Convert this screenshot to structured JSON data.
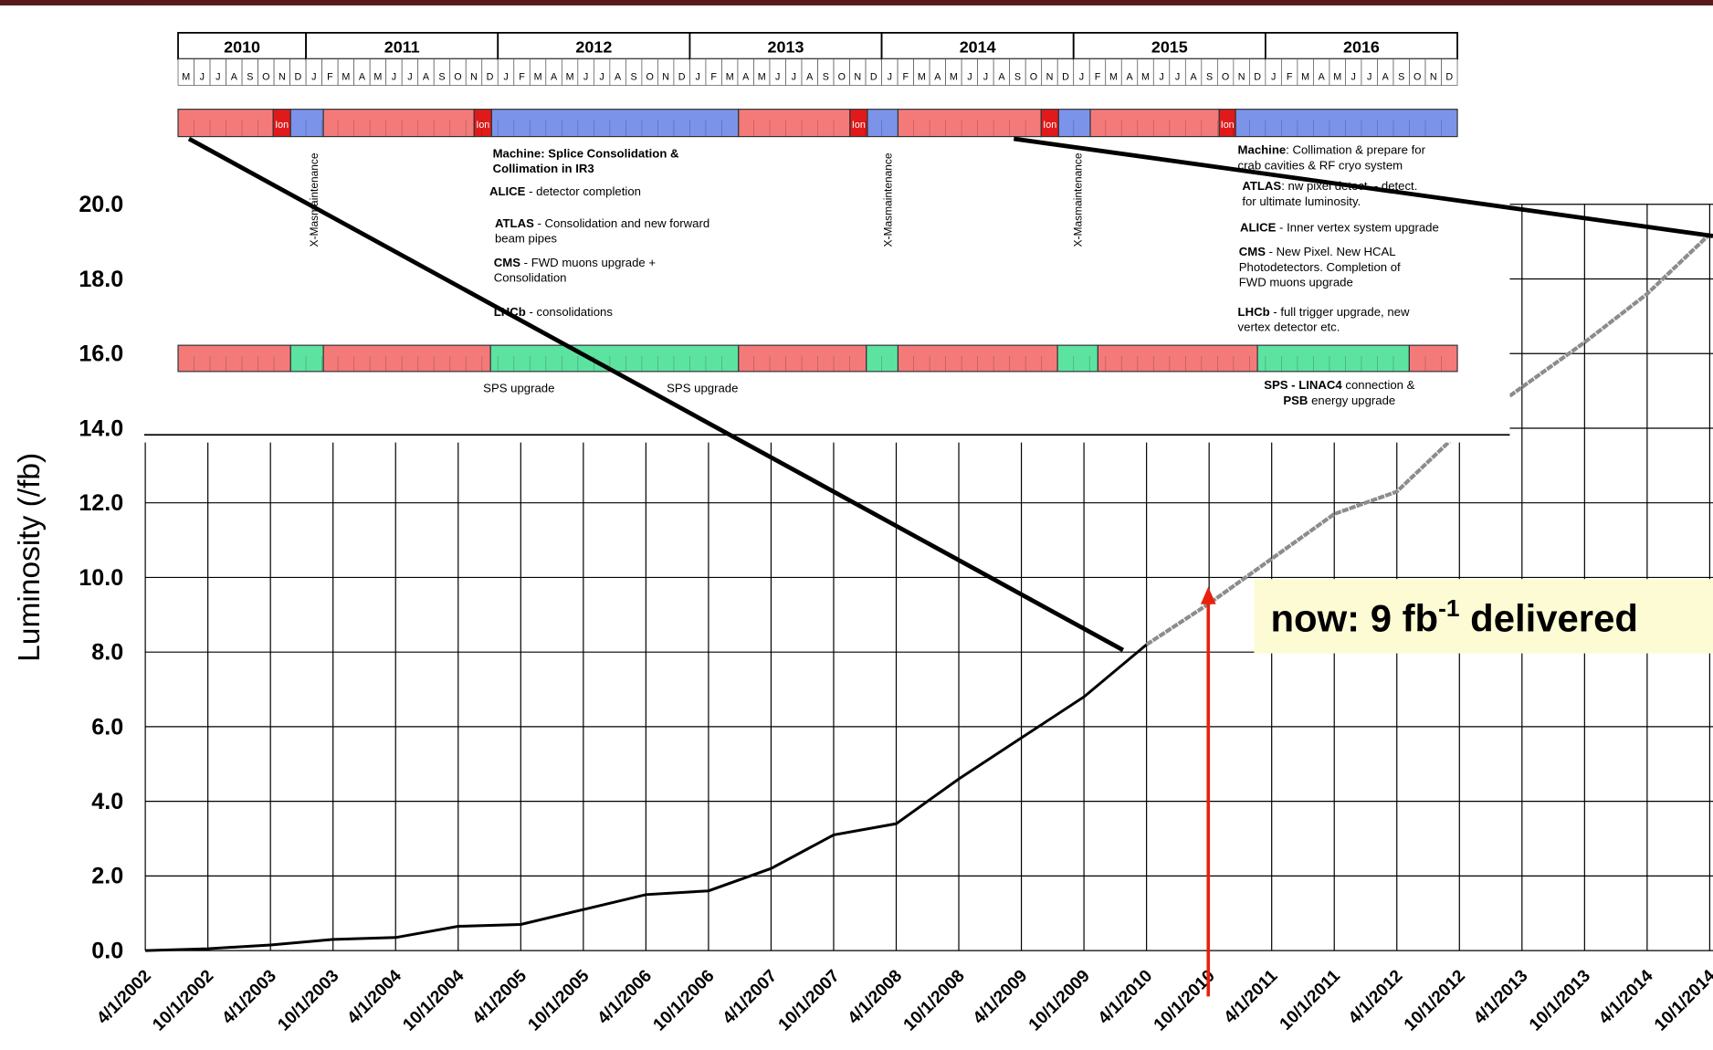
{
  "chart_data": {
    "type": "line",
    "y_axis_label": "Luminosity (/fb)",
    "categories": [
      "4/1/2002",
      "10/1/2002",
      "4/1/2003",
      "10/1/2003",
      "4/1/2004",
      "10/1/2004",
      "4/1/2005",
      "10/1/2005",
      "4/1/2006",
      "10/1/2006",
      "4/1/2007",
      "10/1/2007",
      "4/1/2008",
      "10/1/2008",
      "4/1/2009",
      "10/1/2009",
      "4/1/2010",
      "10/1/2010",
      "4/1/2011",
      "10/1/2011",
      "4/1/2012",
      "10/1/2012",
      "4/1/2013",
      "10/1/2013",
      "4/1/2014",
      "10/1/2014"
    ],
    "series": [
      {
        "color": "#000000",
        "values": [
          0.0,
          0.05,
          0.15,
          0.3,
          0.35,
          0.65,
          0.7,
          1.1,
          1.5,
          1.6,
          2.2,
          3.1,
          3.4,
          4.6,
          5.7,
          6.8,
          8.2,
          null,
          null,
          null,
          null,
          null,
          null,
          null,
          null,
          null
        ]
      },
      {
        "color": "#8c8c8c",
        "values": [
          null,
          null,
          null,
          null,
          null,
          null,
          null,
          null,
          null,
          null,
          null,
          null,
          null,
          null,
          null,
          null,
          8.2,
          9.3,
          10.5,
          11.7,
          12.3,
          13.9,
          15.1,
          16.3,
          17.6,
          19.2
        ]
      }
    ],
    "ylim": [
      0,
      20
    ],
    "yticks": [
      {
        "value": 0,
        "label": "0.0"
      },
      {
        "value": 2,
        "label": "2.0"
      },
      {
        "value": 4,
        "label": "4.0"
      },
      {
        "value": 6,
        "label": "6.0"
      },
      {
        "value": 8,
        "label": "8.0"
      },
      {
        "value": 10,
        "label": "10.0"
      },
      {
        "value": 12,
        "label": "12.0"
      },
      {
        "value": 14,
        "label": "14.0"
      },
      {
        "value": 16,
        "label": "16.0"
      },
      {
        "value": 18,
        "label": "18.0"
      },
      {
        "value": 20,
        "label": "20.0"
      }
    ],
    "grid": true,
    "annotation": {
      "text": "now: 9 fb",
      "superscript": "-1",
      "suffix": " delivered"
    }
  },
  "schedule": {
    "years": [
      "2010",
      "2011",
      "2012",
      "2013",
      "2014",
      "2015",
      "2016"
    ],
    "months": [
      [
        "M",
        "J",
        "J",
        "A",
        "S",
        "O",
        "N",
        "D"
      ],
      [
        "J",
        "F",
        "M",
        "A",
        "M",
        "J",
        "J",
        "A",
        "S",
        "O",
        "N",
        "D"
      ],
      [
        "J",
        "F",
        "M",
        "A",
        "M",
        "J",
        "J",
        "A",
        "S",
        "O",
        "N",
        "D"
      ],
      [
        "J",
        "F",
        "M",
        "A",
        "M",
        "J",
        "J",
        "A",
        "S",
        "O",
        "N",
        "D"
      ],
      [
        "J",
        "F",
        "M",
        "A",
        "M",
        "J",
        "J",
        "A",
        "S",
        "O",
        "N",
        "D"
      ],
      [
        "J",
        "F",
        "M",
        "A",
        "M",
        "J",
        "J",
        "A",
        "S",
        "O",
        "N",
        "D"
      ],
      [
        "J",
        "F",
        "M",
        "A",
        "M",
        "J",
        "J",
        "A",
        "S",
        "O",
        "N",
        "D"
      ]
    ],
    "ion_labels": [
      "Ion",
      "Ion",
      "Ion",
      "Ion",
      "Ion"
    ],
    "xmas_labels": [
      "X-Masmaintenance",
      "X-Masmaintenance",
      "X-Masmaintenance"
    ],
    "notes_left": [
      {
        "bold": "Machine: Splice Consolidation &",
        "rest": ""
      },
      {
        "bold": "Collimation in IR3",
        "rest": ""
      },
      {
        "bold": "ALICE",
        "rest": " - detector completion"
      },
      {
        "bold": "ATLAS",
        "rest": " - Consolidation and new forward"
      },
      {
        "bold": "",
        "rest": "beam pipes"
      },
      {
        "bold": "CMS",
        "rest": " - FWD muons upgrade +"
      },
      {
        "bold": "",
        "rest": "Consolidation"
      },
      {
        "bold": "LHCb",
        "rest": " - consolidations"
      }
    ],
    "notes_right": [
      {
        "bold": "Machine",
        "rest": ": Collimation & prepare for"
      },
      {
        "bold": "",
        "rest": "crab cavities & RF cryo system"
      },
      {
        "bold": "ATLAS",
        "rest": ": nw pixel detect.  - detect."
      },
      {
        "bold": "",
        "rest": "for ultimate luminosity."
      },
      {
        "bold": "ALICE",
        "rest": " - Inner vertex system upgrade"
      },
      {
        "bold": "CMS",
        "rest": " - New Pixel.  New HCAL"
      },
      {
        "bold": "",
        "rest": "Photodetectors. Completion of"
      },
      {
        "bold": "",
        "rest": "FWD muons upgrade"
      },
      {
        "bold": "LHCb",
        "rest": " - full trigger upgrade, new"
      },
      {
        "bold": "",
        "rest": "vertex detector etc."
      }
    ],
    "sps_labels": [
      "SPS upgrade",
      "SPS upgrade"
    ],
    "sps_final": [
      {
        "bold": "SPS - LINAC4",
        "rest": " connection &"
      },
      {
        "bold": "PSB",
        "rest": " energy upgrade"
      }
    ]
  }
}
